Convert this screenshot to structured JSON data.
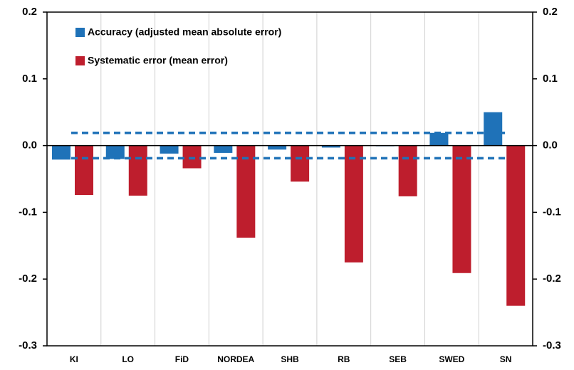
{
  "chart_data": {
    "type": "bar",
    "categories": [
      "KI",
      "LO",
      "FiD",
      "NORDEA",
      "SHB",
      "RB",
      "SEB",
      "SWED",
      "SN"
    ],
    "series": [
      {
        "name": "Accuracy (adjusted mean absolute error)",
        "color": "#1f72b8",
        "values": [
          -0.021,
          -0.02,
          -0.012,
          -0.011,
          -0.006,
          -0.003,
          -0.001,
          0.019,
          0.05
        ]
      },
      {
        "name": "Systematic error (mean error)",
        "color": "#be1e2d",
        "values": [
          -0.074,
          -0.075,
          -0.034,
          -0.138,
          -0.054,
          -0.175,
          -0.076,
          -0.191,
          -0.24
        ]
      }
    ],
    "reference_lines": [
      0.019,
      -0.019
    ],
    "reference_color": "#1f72b8",
    "ylim": [
      -0.3,
      0.2
    ],
    "yticks": [
      -0.3,
      -0.2,
      -0.1,
      {
        "value": 0,
        "label": "0.0"
      },
      0.1,
      0.2
    ],
    "y2lim": [
      -0.3,
      0.2
    ],
    "y2ticks": [
      -0.3,
      -0.2,
      -0.1,
      {
        "value": 0,
        "label": "0.0"
      },
      0.1,
      0.2
    ],
    "grid": true,
    "legend": "top-left"
  }
}
